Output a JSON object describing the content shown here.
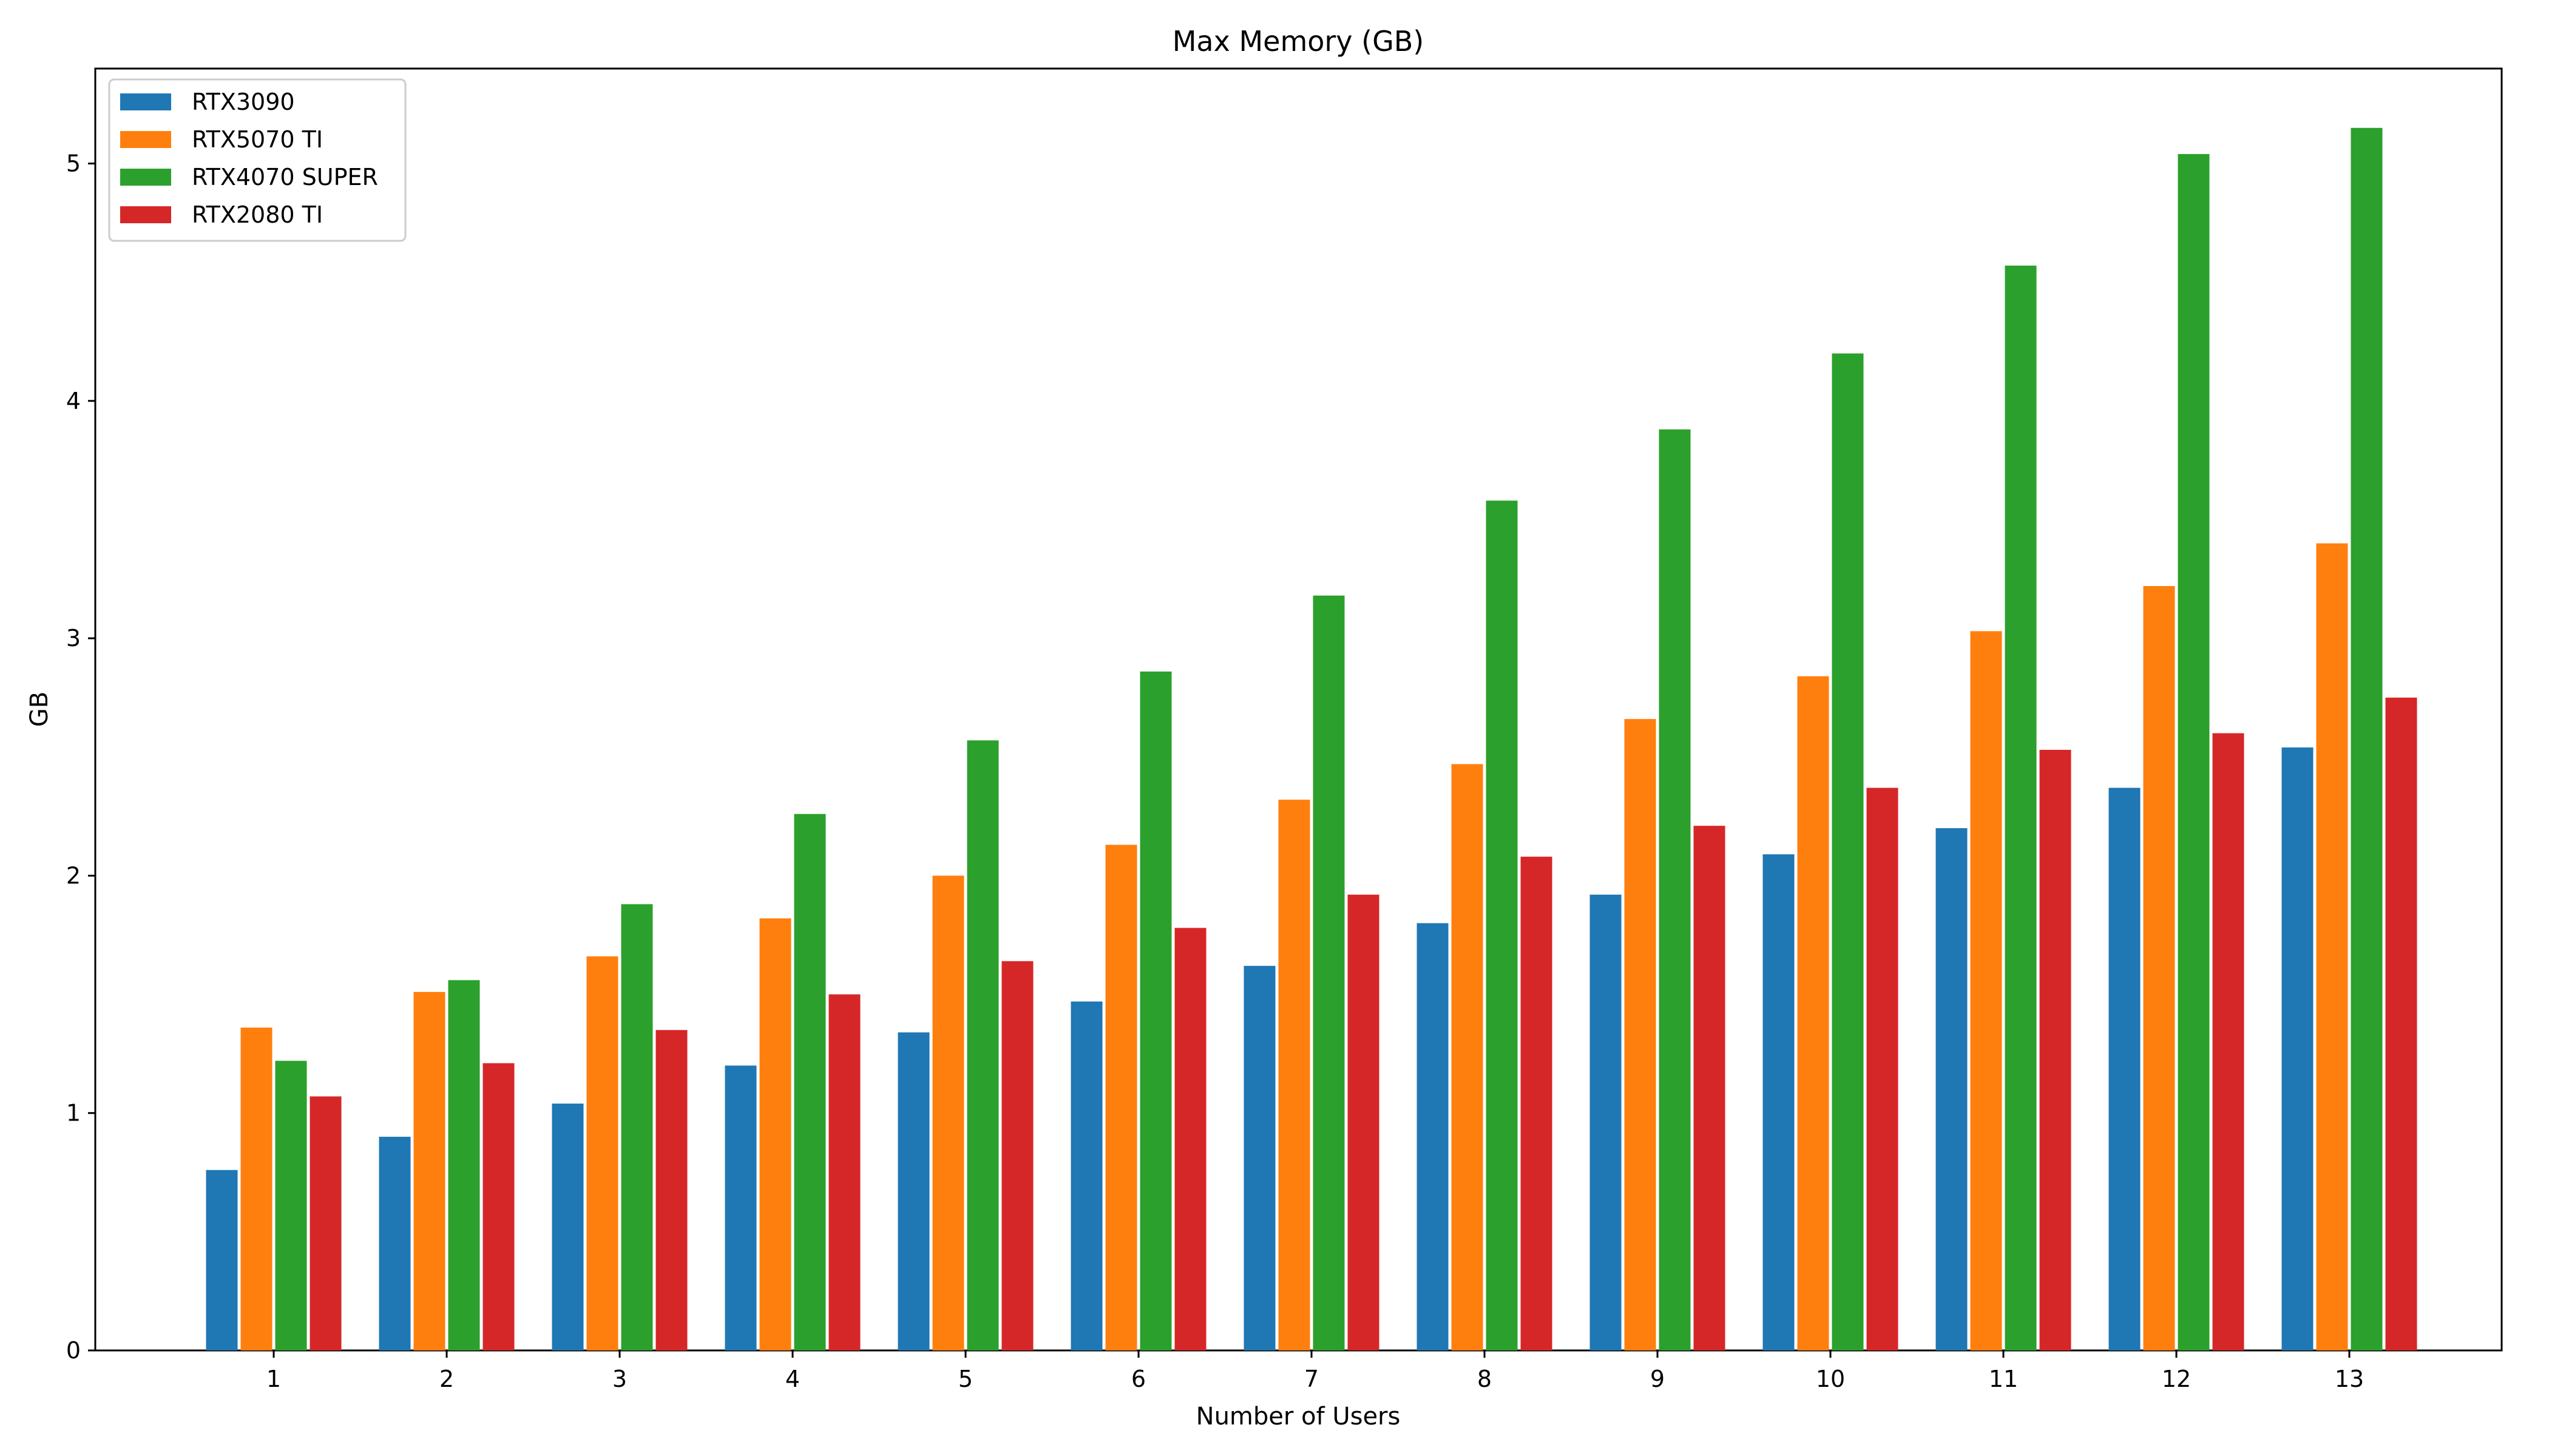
{
  "chart_data": {
    "type": "bar",
    "title": "Max Memory (GB)",
    "xlabel": "Number of Users",
    "ylabel": "GB",
    "ylim": [
      0,
      5.4
    ],
    "yticks": [
      0,
      1,
      2,
      3,
      4,
      5
    ],
    "grid": false,
    "legend_position": "top-left",
    "categories": [
      "1",
      "2",
      "3",
      "4",
      "5",
      "6",
      "7",
      "8",
      "9",
      "10",
      "11",
      "12",
      "13"
    ],
    "series": [
      {
        "name": "RTX3090",
        "color": "#1f77b4",
        "values": [
          0.76,
          0.9,
          1.04,
          1.2,
          1.34,
          1.47,
          1.62,
          1.8,
          1.92,
          2.09,
          2.2,
          2.37,
          2.54
        ]
      },
      {
        "name": "RTX5070 TI",
        "color": "#ff7f0e",
        "values": [
          1.36,
          1.51,
          1.66,
          1.82,
          2.0,
          2.13,
          2.32,
          2.47,
          2.66,
          2.84,
          3.03,
          3.22,
          3.4
        ]
      },
      {
        "name": "RTX4070 SUPER",
        "color": "#2ca02c",
        "values": [
          1.22,
          1.56,
          1.88,
          2.26,
          2.57,
          2.86,
          3.18,
          3.58,
          3.88,
          4.2,
          4.57,
          5.04,
          5.15
        ]
      },
      {
        "name": "RTX2080 TI",
        "color": "#d62728",
        "values": [
          1.07,
          1.21,
          1.35,
          1.5,
          1.64,
          1.78,
          1.92,
          2.08,
          2.21,
          2.37,
          2.53,
          2.6,
          2.75
        ]
      }
    ]
  }
}
